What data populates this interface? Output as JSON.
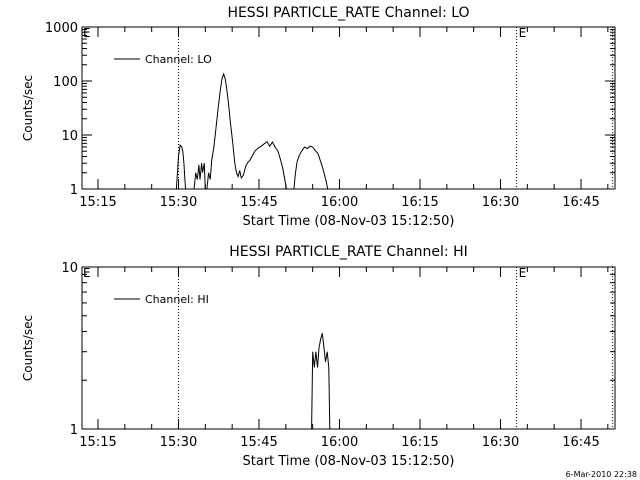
{
  "chart_data": [
    {
      "type": "line",
      "title": "HESSI PARTICLE_RATE Channel: LO",
      "xlabel": "Start Time (08-Nov-03 15:12:50)",
      "ylabel": "Counts/sec",
      "y_scale": "log",
      "ylim": [
        1,
        1000
      ],
      "y_ticks": [
        1,
        10,
        100,
        1000
      ],
      "y_tick_labels": [
        "1",
        "10",
        "100",
        "1000"
      ],
      "xlim_minutes": [
        12.83,
        60.5
      ],
      "x_ticks": [
        15,
        30,
        45,
        60,
        75,
        90,
        105
      ],
      "x_tick_labels": [
        "15:15",
        "15:30",
        "15:45",
        "16:00",
        "16:15",
        "16:30",
        "16:45"
      ],
      "grid": false,
      "legend": {
        "position": "top-left"
      },
      "series": [
        {
          "name": "Channel: LO",
          "color": "#000000",
          "points": [
            [
              29.6,
              1
            ],
            [
              30.0,
              4
            ],
            [
              30.3,
              6.5
            ],
            [
              30.6,
              6
            ],
            [
              30.8,
              5
            ],
            [
              31.0,
              3
            ],
            [
              31.3,
              1
            ],
            [
              32.9,
              1
            ],
            [
              33.2,
              2
            ],
            [
              33.5,
              1.5
            ],
            [
              33.8,
              2.8
            ],
            [
              34.0,
              1.5
            ],
            [
              34.3,
              3
            ],
            [
              34.5,
              2
            ],
            [
              34.8,
              3
            ],
            [
              35.0,
              1
            ],
            [
              35.3,
              1
            ],
            [
              35.6,
              2
            ],
            [
              35.9,
              1.5
            ],
            [
              36.2,
              3.5
            ],
            [
              36.6,
              6
            ],
            [
              37.0,
              14
            ],
            [
              37.4,
              32
            ],
            [
              37.8,
              70
            ],
            [
              38.1,
              110
            ],
            [
              38.4,
              135
            ],
            [
              38.7,
              110
            ],
            [
              39.0,
              70
            ],
            [
              39.3,
              40
            ],
            [
              39.6,
              20
            ],
            [
              39.9,
              11
            ],
            [
              40.2,
              6
            ],
            [
              40.5,
              3
            ],
            [
              40.8,
              2
            ],
            [
              41.1,
              1.7
            ],
            [
              41.4,
              2.2
            ],
            [
              41.7,
              1.6
            ],
            [
              42.1,
              1.8
            ],
            [
              42.5,
              2.6
            ],
            [
              42.9,
              3.1
            ],
            [
              43.3,
              3.4
            ],
            [
              43.8,
              4.2
            ],
            [
              44.3,
              5.1
            ],
            [
              44.9,
              5.8
            ],
            [
              45.4,
              6.2
            ],
            [
              46.0,
              6.9
            ],
            [
              46.5,
              7.5
            ],
            [
              47.0,
              6.2
            ],
            [
              47.5,
              7.4
            ],
            [
              48.0,
              6.0
            ],
            [
              48.5,
              5.1
            ],
            [
              49.0,
              3.5
            ],
            [
              49.4,
              2.5
            ],
            [
              49.8,
              1.5
            ],
            [
              50.1,
              1
            ],
            [
              51.5,
              1
            ],
            [
              51.8,
              2
            ],
            [
              52.1,
              3.2
            ],
            [
              52.5,
              4.2
            ],
            [
              53.0,
              5.1
            ],
            [
              53.5,
              6.0
            ],
            [
              54.0,
              5.6
            ],
            [
              54.5,
              6.2
            ],
            [
              55.0,
              6.0
            ],
            [
              55.5,
              5.1
            ],
            [
              56.0,
              4.5
            ],
            [
              56.5,
              3.2
            ],
            [
              57.0,
              2.2
            ],
            [
              57.5,
              1.4
            ],
            [
              57.8,
              1
            ]
          ]
        }
      ],
      "markers": [
        {
          "x": 30.0,
          "style": "dotted"
        },
        {
          "x": 93.0,
          "style": "dotted",
          "label": "E"
        },
        {
          "x": 110.9,
          "style": "dotted"
        }
      ],
      "corner_label": "E"
    },
    {
      "type": "line",
      "title": "HESSI PARTICLE_RATE Channel: HI",
      "xlabel": "Start Time (08-Nov-03 15:12:50)",
      "ylabel": "Counts/sec",
      "y_scale": "log",
      "ylim": [
        1,
        10
      ],
      "y_ticks": [
        1,
        10
      ],
      "y_tick_labels": [
        "1",
        "10"
      ],
      "xlim_minutes": [
        12.83,
        60.5
      ],
      "x_ticks": [
        15,
        30,
        45,
        60,
        75,
        90,
        105
      ],
      "x_tick_labels": [
        "15:15",
        "15:30",
        "15:45",
        "16:00",
        "16:15",
        "16:30",
        "16:45"
      ],
      "grid": false,
      "legend": {
        "position": "top-left"
      },
      "series": [
        {
          "name": "Channel: HI",
          "color": "#000000",
          "points": [
            [
              54.8,
              1
            ],
            [
              55.0,
              3
            ],
            [
              55.3,
              2.4
            ],
            [
              55.6,
              3
            ],
            [
              55.9,
              2.4
            ],
            [
              56.2,
              3.2
            ],
            [
              56.5,
              3.6
            ],
            [
              56.8,
              3.9
            ],
            [
              57.1,
              3.2
            ],
            [
              57.4,
              2.6
            ],
            [
              57.7,
              3
            ],
            [
              58.0,
              2.4
            ],
            [
              58.2,
              1
            ]
          ]
        }
      ],
      "markers": [
        {
          "x": 30.0,
          "style": "dotted"
        },
        {
          "x": 93.0,
          "style": "dotted",
          "label": "E"
        },
        {
          "x": 110.9,
          "style": "dotted"
        }
      ],
      "corner_label": "E"
    }
  ],
  "footer_timestamp": "6-Mar-2010 22:38"
}
